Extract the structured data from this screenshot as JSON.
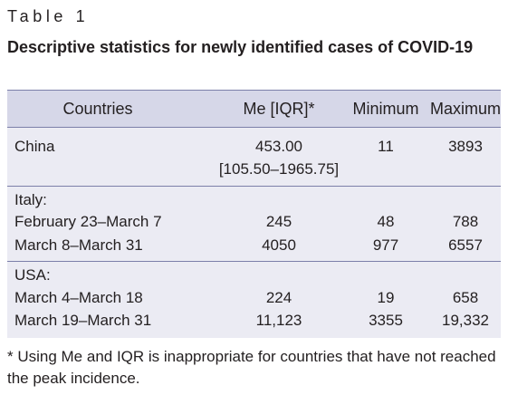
{
  "table_label": "Table 1",
  "caption": "Descriptive statistics for newly identified cases of COVID-19",
  "headers": {
    "countries": "Countries",
    "me_iqr": "Me [IQR]*",
    "minimum": "Minimum",
    "maximum": "Maximum"
  },
  "china": {
    "label": "China",
    "me": "453.00",
    "iqr": "[105.50–1965.75]",
    "minimum": "11",
    "maximum": "3893"
  },
  "italy": {
    "label": "Italy:",
    "rows": [
      {
        "period": "February 23–March 7",
        "me": "245",
        "minimum": "48",
        "maximum": "788"
      },
      {
        "period": "March 8–March 31",
        "me": "4050",
        "minimum": "977",
        "maximum": "6557"
      }
    ]
  },
  "usa": {
    "label": "USA:",
    "rows": [
      {
        "period": "March 4–March 18",
        "me": "224",
        "minimum": "19",
        "maximum": "658"
      },
      {
        "period": "March 19–March 31",
        "me": "11,123",
        "minimum": "3355",
        "maximum": "19,332"
      }
    ]
  },
  "footnote": "* Using Me and IQR is inappropriate for countries that have not reached the peak incidence."
}
